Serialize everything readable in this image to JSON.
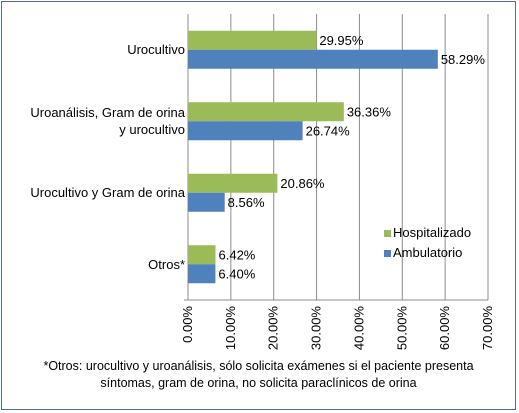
{
  "chart_data": {
    "type": "bar",
    "orientation": "horizontal",
    "categories": [
      "Urocultivo",
      "Uroanálisis, Gram de orina y urocultivo",
      "Urocultivo y Gram de orina",
      "Otros*"
    ],
    "category_lines": [
      [
        "Urocultivo"
      ],
      [
        "Uroanálisis, Gram de orina",
        "y urocultivo"
      ],
      [
        "Urocultivo y Gram de orina"
      ],
      [
        "Otros*"
      ]
    ],
    "series": [
      {
        "name": "Hospitalizado",
        "color": "#9bbb59",
        "values": [
          29.95,
          36.36,
          20.86,
          6.42
        ],
        "labels": [
          "29.95%",
          "36.36%",
          "20.86%",
          "6.42%"
        ]
      },
      {
        "name": "Ambulatorio",
        "color": "#4f81bd",
        "values": [
          58.29,
          26.74,
          8.56,
          6.4
        ],
        "labels": [
          "58.29%",
          "26.74%",
          "8.56%",
          "6.40%"
        ]
      }
    ],
    "xlim": [
      0,
      70
    ],
    "x_ticks": [
      0,
      10,
      20,
      30,
      40,
      50,
      60,
      70
    ],
    "x_tick_labels": [
      "0.00%",
      "10.00%",
      "20.00%",
      "30.00%",
      "40.00%",
      "50.00%",
      "60.00%",
      "70.00%"
    ],
    "grid": true,
    "legend_position": "right"
  },
  "footnote": {
    "line1": "*Otros: urocultivo y uroanálisis, sólo solicita exámenes si el paciente presenta",
    "line2": "síntomas, gram de orina, no solicita paraclínicos de orina"
  }
}
